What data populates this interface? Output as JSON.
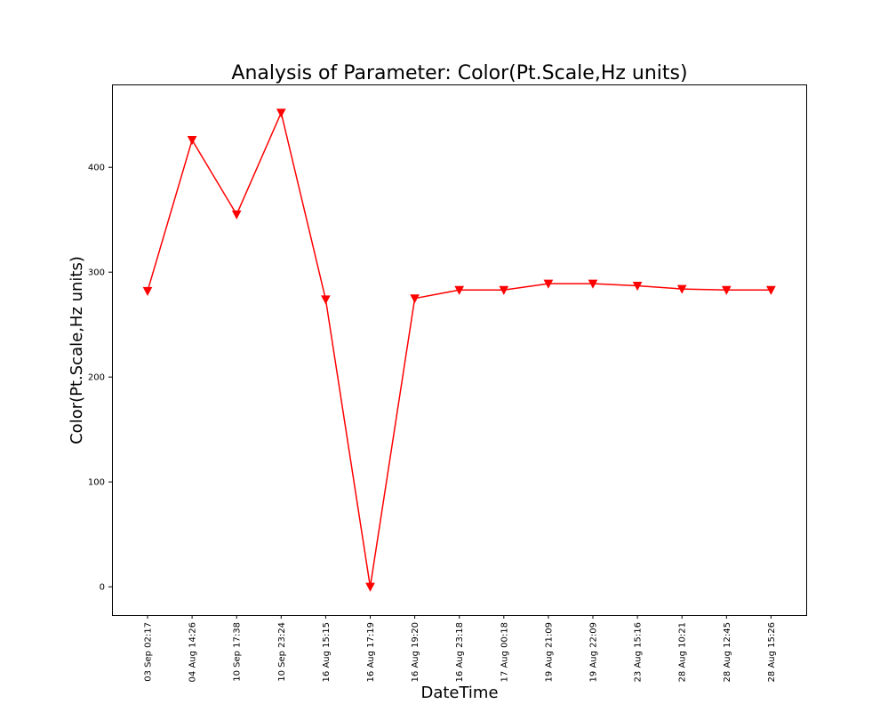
{
  "chart_data": {
    "type": "line",
    "title": "Analysis of Parameter: Color(Pt.Scale,Hz units)",
    "xlabel": "DateTime",
    "ylabel": "Color(Pt.Scale,Hz units)",
    "categories": [
      "03 Sep 02:17",
      "04 Aug 14:26",
      "10 Sep 17:38",
      "10 Sep 23:24",
      "16 Aug 15:15",
      "16 Aug 17:19",
      "16 Aug 19:20",
      "16 Aug 23:18",
      "17 Aug 00:18",
      "19 Aug 21:09",
      "19 Aug 22:09",
      "23 Aug 15:16",
      "28 Aug 10:21",
      "28 Aug 12:45",
      "28 Aug 15:26"
    ],
    "series": [
      {
        "values": [
          282,
          426,
          355,
          452,
          274,
          0,
          275,
          283,
          283,
          289,
          289,
          287,
          284,
          283,
          283
        ],
        "color": "#ff0000",
        "marker": "triangle-down"
      }
    ],
    "ylim": [
      -27,
      479
    ],
    "yticks": [
      0,
      100,
      200,
      300,
      400
    ],
    "grid": false,
    "legend": "none"
  }
}
